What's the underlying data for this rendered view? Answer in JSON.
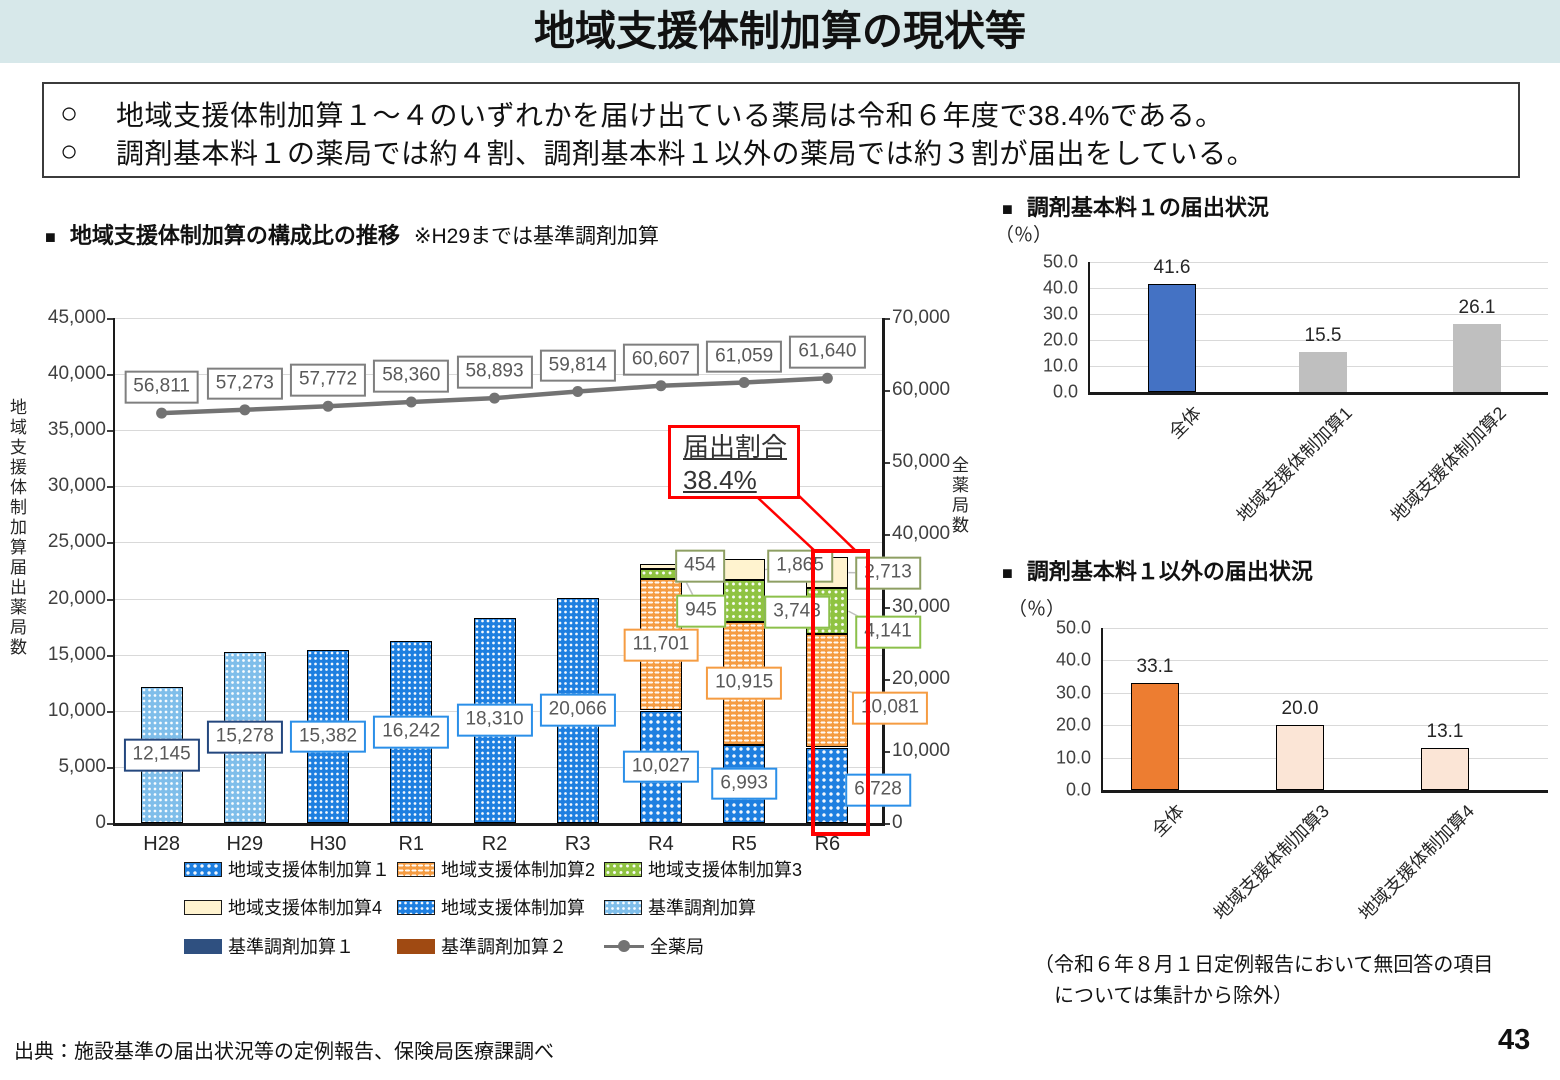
{
  "page": {
    "title": "地域支援体制加算の現状等",
    "bullets": [
      "地域支援体制加算１～４のいずれかを届け出ている薬局は令和６年度で38.4%である。",
      "調剤基本料１の薬局では約４割、調剤基本料１以外の薬局では約３割が届出をしている。"
    ],
    "source": "出典：施設基準の届出状況等の定例報告、保険局医療課調べ",
    "page_number": "43"
  },
  "icons": {
    "square_bullet": "■",
    "circle_bullet": "○"
  },
  "colors": {
    "title_band": "#D7E8EA",
    "highlight_red": "#FF0000",
    "line_gray": "#737373",
    "k1_blue": "#1E7FE0",
    "k2_orange": "#F59C42",
    "k3_green": "#8FC341",
    "k4_cream": "#FFF3CF",
    "kijun_lightblue": "#7FBEEA",
    "kijun1_navy": "#2F5080",
    "kijun2_brown": "#A04A12",
    "fee1_blue": "#4472C4",
    "fee1_gray": "#BFBFBF",
    "non_fee1_orange": "#ED7D31",
    "non_fee1_peach": "#FBE5D6"
  },
  "chart_data": [
    {
      "type": "bar",
      "combo": "stacked-bar+line",
      "title": "地域支援体制加算の構成比の推移",
      "title_note": "※H29までは基準調剤加算",
      "categories": [
        "H28",
        "H29",
        "H30",
        "R1",
        "R2",
        "R3",
        "R4",
        "R5",
        "R6"
      ],
      "series": [
        {
          "name": "基準調剤加算",
          "key": "kijun",
          "values": [
            12145,
            15278,
            null,
            null,
            null,
            null,
            null,
            null,
            null
          ]
        },
        {
          "name": "地域支援体制加算",
          "key": "chiiki",
          "values": [
            null,
            null,
            15382,
            16242,
            18310,
            20066,
            null,
            null,
            null
          ]
        },
        {
          "name": "地域支援体制加算１",
          "key": "k1",
          "values": [
            null,
            null,
            null,
            null,
            null,
            null,
            10027,
            6993,
            6728
          ]
        },
        {
          "name": "地域支援体制加算2",
          "key": "k2",
          "values": [
            null,
            null,
            null,
            null,
            null,
            null,
            11701,
            10915,
            10081
          ]
        },
        {
          "name": "地域支援体制加算3",
          "key": "k3",
          "values": [
            null,
            null,
            null,
            null,
            null,
            null,
            945,
            3743,
            4141
          ]
        },
        {
          "name": "地域支援体制加算4",
          "key": "k4",
          "values": [
            null,
            null,
            null,
            null,
            null,
            null,
            454,
            1865,
            2713
          ]
        }
      ],
      "line_series": {
        "name": "全薬局",
        "values": [
          56811,
          57273,
          57772,
          58360,
          58893,
          59814,
          60607,
          61059,
          61640
        ]
      },
      "y_left": {
        "label": "地域支援体制加算届出薬局数",
        "min": 0,
        "max": 45000,
        "step": 5000
      },
      "y_right": {
        "label": "全薬局数",
        "min": 0,
        "max": 70000,
        "step": 10000
      },
      "annotation": {
        "title": "届出割合",
        "value": "38.4%",
        "target_category": "R6"
      },
      "legend": [
        {
          "label": "地域支援体制加算１",
          "swatch": "k1"
        },
        {
          "label": "地域支援体制加算2",
          "swatch": "k2"
        },
        {
          "label": "地域支援体制加算3",
          "swatch": "k3"
        },
        {
          "label": "地域支援体制加算4",
          "swatch": "k4"
        },
        {
          "label": "地域支援体制加算",
          "swatch": "chiiki"
        },
        {
          "label": "基準調剤加算",
          "swatch": "kijun"
        },
        {
          "label": "基準調剤加算１",
          "swatch": "kijun1"
        },
        {
          "label": "基準調剤加算２",
          "swatch": "kijun2"
        },
        {
          "label": "全薬局",
          "swatch": "line"
        }
      ],
      "legend_position": "bottom",
      "grid": true
    },
    {
      "type": "bar",
      "title": "調剤基本料１の届出状況",
      "unit": "（％）",
      "categories": [
        "全体",
        "地域支援体制加算1",
        "地域支援体制加算2"
      ],
      "values": [
        41.6,
        15.5,
        26.1
      ],
      "ylim": [
        0,
        50
      ],
      "step": 10,
      "bar_colors": [
        "#4472C4",
        "#BFBFBF",
        "#BFBFBF"
      ],
      "grid": true
    },
    {
      "type": "bar",
      "title": "調剤基本料１以外の届出状況",
      "unit": "（％）",
      "categories": [
        "全体",
        "地域支援体制加算3",
        "地域支援体制加算4"
      ],
      "values": [
        33.1,
        20.0,
        13.1
      ],
      "ylim": [
        0,
        50
      ],
      "step": 10,
      "bar_colors": [
        "#ED7D31",
        "#FBE5D6",
        "#FBE5D6"
      ],
      "note_lines": [
        "（令和６年８月１日定例報告において無回答の項目",
        "については集計から除外）"
      ],
      "grid": true
    }
  ]
}
